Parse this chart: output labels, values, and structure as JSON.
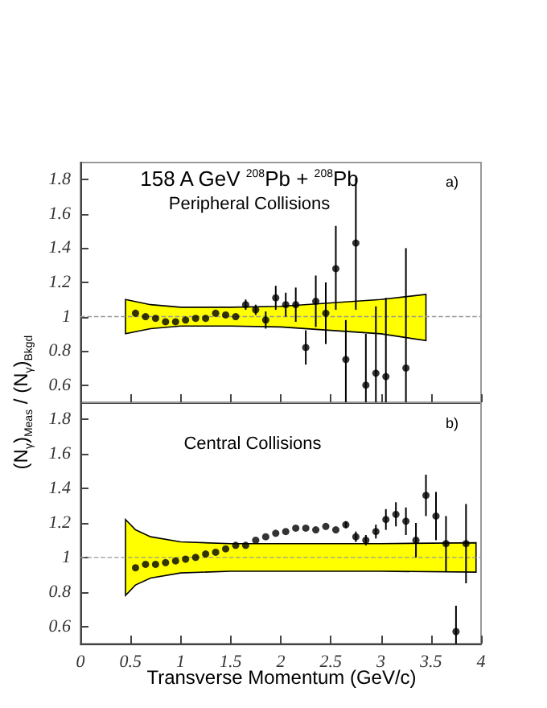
{
  "chart_data": [
    {
      "type": "scatter",
      "title": "158 A GeV $^{208}$Pb + $^{208}$Pb",
      "ylabel": "(N$_{γ}$)$_{Meas}$ / (N$_{γ}$)$_{Bkgd}$",
      "annotations": [
        "Peripheral Collisions",
        "a)"
      ],
      "xlim": [
        0,
        4
      ],
      "xticks": [
        0,
        0.5,
        1,
        1.5,
        2,
        2.5,
        3,
        3.5,
        4
      ],
      "ylim": [
        0.5,
        1.9
      ],
      "yticks": [
        0.6,
        0.8,
        1,
        1.2,
        1.4,
        1.6,
        1.8
      ],
      "tick_labels": "y",
      "marker": "circle",
      "series": [
        {
          "type": "line",
          "color": "#999999",
          "line_style": "dashed",
          "marker": "none",
          "x": [
            0,
            0.45,
            0.7,
            1.0,
            1.5,
            2.0,
            2.5,
            3.0,
            3.45,
            4
          ],
          "values": [
            1,
            1,
            1,
            1,
            1,
            1,
            1,
            1,
            1,
            1
          ],
          "upper": [
            null,
            1.1,
            1.07,
            1.055,
            1.055,
            1.06,
            1.08,
            1.1,
            1.13,
            null
          ],
          "lower": [
            null,
            0.9,
            0.93,
            0.945,
            0.945,
            0.94,
            0.92,
            0.9,
            0.86,
            null
          ]
        },
        {
          "color": "#000000",
          "x": [
            0.55,
            0.65,
            0.75,
            0.85,
            0.95,
            1.05,
            1.15,
            1.25,
            1.35,
            1.45,
            1.55,
            1.65,
            1.75,
            1.85,
            1.95,
            2.05,
            2.15,
            2.25,
            2.35,
            2.45,
            2.55,
            2.65,
            2.75,
            2.85,
            2.95,
            3.05,
            3.25
          ],
          "values": [
            1.02,
            1.0,
            0.99,
            0.97,
            0.97,
            0.98,
            0.99,
            0.99,
            1.02,
            1.01,
            1.0,
            1.07,
            1.04,
            0.98,
            1.11,
            1.07,
            1.07,
            0.82,
            1.09,
            1.02,
            1.28,
            0.75,
            1.43,
            0.6,
            0.67,
            0.65,
            0.7
          ],
          "errors": [
            null,
            null,
            null,
            null,
            null,
            null,
            null,
            null,
            null,
            null,
            null,
            0.03,
            0.03,
            0.05,
            0.07,
            0.07,
            0.1,
            0.1,
            0.15,
            0.18,
            [
              1.04,
              1.53
            ],
            [
              0.5,
              0.98
            ],
            [
              1.04,
              1.81
            ],
            [
              0.5,
              0.9
            ],
            [
              0.5,
              1.06
            ],
            [
              0.5,
              1.11
            ],
            [
              0.5,
              1.4
            ]
          ]
        }
      ]
    },
    {
      "type": "scatter",
      "xlabel": "Transverse Momentum (GeV/c)",
      "annotations": [
        "Central Collisions",
        "b)"
      ],
      "xlim": [
        0,
        4
      ],
      "xticks": [
        0,
        0.5,
        1,
        1.5,
        2,
        2.5,
        3,
        3.5,
        4
      ],
      "ylim": [
        0.5,
        1.9
      ],
      "yticks": [
        0.6,
        0.8,
        1,
        1.2,
        1.4,
        1.6,
        1.8
      ],
      "marker": "circle",
      "series": [
        {
          "type": "line",
          "color": "#999999",
          "line_style": "dashed",
          "marker": "none",
          "x": [
            0,
            0.45,
            0.55,
            0.7,
            1.0,
            1.5,
            2.0,
            3.0,
            3.95,
            4
          ],
          "values": [
            1,
            1,
            1,
            1,
            1,
            1,
            1,
            1,
            1,
            1
          ],
          "upper": [
            null,
            1.22,
            1.16,
            1.12,
            1.09,
            1.08,
            1.08,
            1.08,
            1.085,
            null
          ],
          "lower": [
            null,
            0.78,
            0.84,
            0.88,
            0.91,
            0.92,
            0.92,
            0.92,
            0.915,
            null
          ]
        },
        {
          "color": "#000000",
          "x": [
            0.55,
            0.65,
            0.75,
            0.85,
            0.95,
            1.05,
            1.15,
            1.25,
            1.35,
            1.45,
            1.55,
            1.65,
            1.75,
            1.85,
            1.95,
            2.05,
            2.15,
            2.25,
            2.35,
            2.45,
            2.55,
            2.65,
            2.75,
            2.85,
            2.95,
            3.05,
            3.15,
            3.25,
            3.35,
            3.45,
            3.55,
            3.65,
            3.75,
            3.85
          ],
          "values": [
            0.94,
            0.96,
            0.96,
            0.97,
            0.98,
            0.99,
            1.0,
            1.02,
            1.03,
            1.05,
            1.07,
            1.07,
            1.1,
            1.12,
            1.14,
            1.15,
            1.17,
            1.17,
            1.16,
            1.18,
            1.16,
            1.19,
            1.12,
            1.1,
            1.15,
            1.22,
            1.25,
            1.21,
            1.1,
            1.36,
            1.24,
            1.08,
            0.57,
            1.08
          ],
          "errors": [
            null,
            null,
            null,
            null,
            null,
            null,
            null,
            null,
            null,
            null,
            null,
            null,
            null,
            null,
            null,
            null,
            null,
            null,
            null,
            null,
            null,
            0.02,
            0.03,
            0.03,
            0.04,
            0.06,
            0.07,
            0.08,
            0.1,
            0.12,
            0.14,
            0.16,
            [
              0.5,
              0.72
            ],
            0.23
          ]
        }
      ]
    }
  ]
}
